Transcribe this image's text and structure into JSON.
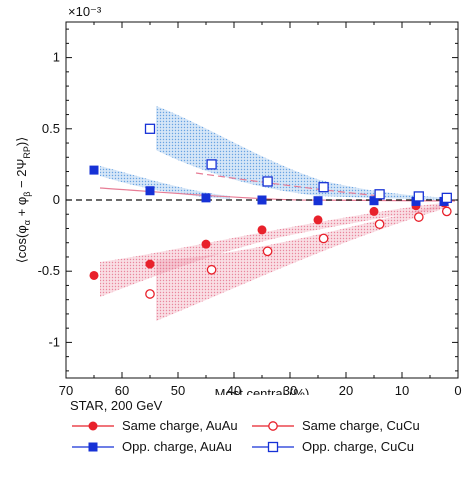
{
  "chart_data": {
    "type": "scatter",
    "exponent_label": "×10⁻³",
    "xlabel": "Most central (%)",
    "ylabel_parts": [
      "⟨cos(φ",
      "α",
      " + φ",
      "β",
      " − 2Ψ",
      "RP",
      ")⟩"
    ],
    "xlim": [
      70,
      0
    ],
    "ylim": [
      -1.25,
      1.25
    ],
    "x_ticks": [
      70,
      60,
      50,
      40,
      30,
      20,
      10,
      0
    ],
    "y_ticks": [
      -1,
      -0.5,
      0,
      0.5,
      1
    ],
    "legend_title": "STAR, 200 GeV",
    "colors": {
      "red": "#e8212b",
      "blue": "#1631d6",
      "red_band": "#e77c95",
      "blue_band": "#5d9be0"
    },
    "series": [
      {
        "name": "Same charge, AuAu",
        "marker": "filled-circle",
        "color": "#e8212b",
        "x": [
          65,
          55,
          45,
          35,
          25,
          15,
          7.5,
          2.5
        ],
        "y": [
          -0.53,
          -0.45,
          -0.31,
          -0.21,
          -0.14,
          -0.08,
          -0.04,
          -0.02
        ]
      },
      {
        "name": "Opp. charge, AuAu",
        "marker": "filled-square",
        "color": "#1631d6",
        "x": [
          65,
          55,
          45,
          35,
          25,
          15,
          7.5,
          2.5
        ],
        "y": [
          0.21,
          0.065,
          0.015,
          0.0,
          -0.005,
          -0.005,
          -0.01,
          -0.01
        ]
      },
      {
        "name": "Same charge, CuCu",
        "marker": "open-circle",
        "color": "#e8212b",
        "x": [
          55,
          44,
          34,
          24,
          14,
          7,
          2
        ],
        "y": [
          -0.66,
          -0.49,
          -0.36,
          -0.27,
          -0.17,
          -0.12,
          -0.08
        ]
      },
      {
        "name": "Opp. charge, CuCu",
        "marker": "open-square",
        "color": "#1631d6",
        "x": [
          55,
          44,
          34,
          24,
          14,
          7,
          2
        ],
        "y": [
          0.5,
          0.25,
          0.13,
          0.09,
          0.04,
          0.025,
          0.015
        ]
      }
    ]
  }
}
